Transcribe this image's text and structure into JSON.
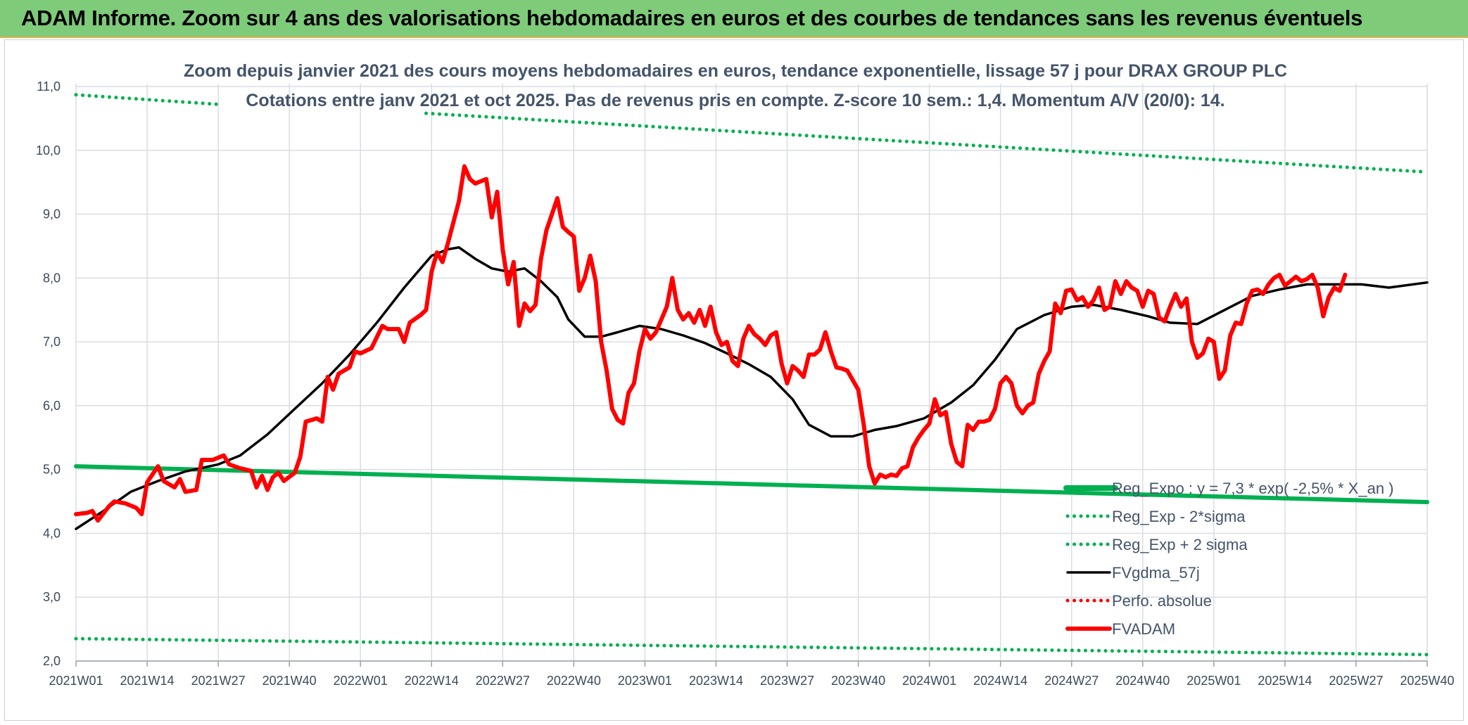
{
  "banner": {
    "title": "ADAM Informe. Zoom sur 4 ans des valorisations hebdomadaires en euros et des courbes de tendances sans les revenus éventuels"
  },
  "colors": {
    "banner_bg": "#7ecb7a",
    "trend": "#00b050",
    "price": "#ff0000",
    "smooth": "#000000",
    "grid": "#d9dde3",
    "text": "#44546a"
  },
  "chart_data": {
    "type": "line",
    "title_lines": [
      "Zoom depuis janvier 2021 des cours moyens hebdomadaires en euros, tendance exponentielle, lissage 57 j pour DRAX GROUP PLC",
      "Cotations entre janv 2021 et oct 2025. Pas de revenus pris en compte. Z-score 10 sem.: 1,4. Momentum A/V (20/0): 14."
    ],
    "x_ticks": [
      "2021W01",
      "2021W14",
      "2021W27",
      "2021W40",
      "2022W01",
      "2022W14",
      "2022W27",
      "2022W40",
      "2023W01",
      "2023W14",
      "2023W27",
      "2023W40",
      "2024W01",
      "2024W14",
      "2024W27",
      "2024W40",
      "2025W01",
      "2025W14",
      "2025W27",
      "2025W40"
    ],
    "y_ticks": [
      "2,0",
      "3,0",
      "4,0",
      "5,0",
      "6,0",
      "7,0",
      "8,0",
      "9,0",
      "10,0",
      "11,0"
    ],
    "ylim": [
      2.0,
      11.0
    ],
    "x_range_weeks": [
      0,
      247
    ],
    "grid": true,
    "legend_position": "bottom-right",
    "series": [
      {
        "name": "Reg_Expo : y = 7,3 * exp( -2,5% *  X_an )",
        "style": "solid-thick",
        "color": "#00b050",
        "points": [
          [
            0,
            5.05
          ],
          [
            247,
            4.49
          ]
        ]
      },
      {
        "name": "Reg_Exp - 2*sigma",
        "style": "dotted",
        "color": "#00b050",
        "points": [
          [
            0,
            2.35
          ],
          [
            247,
            2.1
          ]
        ]
      },
      {
        "name": "Reg_Exp + 2 sigma",
        "style": "dotted",
        "color": "#00b050",
        "points": [
          [
            0,
            10.87
          ],
          [
            26,
            10.72
          ]
        ],
        "points_b": [
          [
            64,
            10.58
          ],
          [
            247,
            9.66
          ]
        ]
      },
      {
        "name": "FVgdma_57j",
        "style": "solid",
        "color": "#000000",
        "points": [
          [
            0,
            4.07
          ],
          [
            5,
            4.35
          ],
          [
            10,
            4.65
          ],
          [
            15,
            4.82
          ],
          [
            20,
            4.97
          ],
          [
            26,
            5.08
          ],
          [
            30,
            5.22
          ],
          [
            35,
            5.55
          ],
          [
            40,
            5.95
          ],
          [
            45,
            6.35
          ],
          [
            50,
            6.8
          ],
          [
            55,
            7.3
          ],
          [
            60,
            7.85
          ],
          [
            65,
            8.35
          ],
          [
            68,
            8.45
          ],
          [
            70,
            8.48
          ],
          [
            73,
            8.3
          ],
          [
            76,
            8.15
          ],
          [
            79,
            8.1
          ],
          [
            82,
            8.15
          ],
          [
            85,
            7.95
          ],
          [
            88,
            7.7
          ],
          [
            90,
            7.35
          ],
          [
            93,
            7.08
          ],
          [
            96,
            7.08
          ],
          [
            99,
            7.15
          ],
          [
            103,
            7.25
          ],
          [
            107,
            7.2
          ],
          [
            111,
            7.1
          ],
          [
            115,
            6.98
          ],
          [
            119,
            6.82
          ],
          [
            123,
            6.65
          ],
          [
            127,
            6.45
          ],
          [
            131,
            6.1
          ],
          [
            134,
            5.7
          ],
          [
            138,
            5.52
          ],
          [
            142,
            5.52
          ],
          [
            146,
            5.62
          ],
          [
            150,
            5.68
          ],
          [
            155,
            5.8
          ],
          [
            160,
            6.05
          ],
          [
            164,
            6.32
          ],
          [
            168,
            6.72
          ],
          [
            172,
            7.2
          ],
          [
            177,
            7.42
          ],
          [
            182,
            7.55
          ],
          [
            186,
            7.58
          ],
          [
            191,
            7.5
          ],
          [
            196,
            7.4
          ],
          [
            200,
            7.3
          ],
          [
            205,
            7.28
          ],
          [
            210,
            7.5
          ],
          [
            215,
            7.72
          ],
          [
            220,
            7.82
          ],
          [
            225,
            7.9
          ],
          [
            230,
            7.9
          ],
          [
            235,
            7.9
          ],
          [
            240,
            7.85
          ],
          [
            247,
            7.93
          ]
        ]
      },
      {
        "name": "Perfo. absolue",
        "style": "dotted",
        "color": "#ff0000",
        "points": []
      },
      {
        "name": "FVADAM",
        "style": "solid-thick",
        "color": "#ff0000",
        "points": [
          [
            0,
            4.3
          ],
          [
            2,
            4.32
          ],
          [
            3,
            4.35
          ],
          [
            4,
            4.2
          ],
          [
            6,
            4.42
          ],
          [
            7,
            4.5
          ],
          [
            9,
            4.47
          ],
          [
            11,
            4.4
          ],
          [
            12,
            4.3
          ],
          [
            13,
            4.8
          ],
          [
            15,
            5.05
          ],
          [
            16,
            4.82
          ],
          [
            18,
            4.72
          ],
          [
            19,
            4.85
          ],
          [
            20,
            4.65
          ],
          [
            22,
            4.68
          ],
          [
            23,
            5.15
          ],
          [
            25,
            5.15
          ],
          [
            27,
            5.22
          ],
          [
            28,
            5.08
          ],
          [
            30,
            5.02
          ],
          [
            32,
            4.98
          ],
          [
            33,
            4.72
          ],
          [
            34,
            4.9
          ],
          [
            35,
            4.68
          ],
          [
            36,
            4.88
          ],
          [
            37,
            4.95
          ],
          [
            38,
            4.82
          ],
          [
            40,
            4.95
          ],
          [
            41,
            5.2
          ],
          [
            42,
            5.75
          ],
          [
            44,
            5.8
          ],
          [
            45,
            5.75
          ],
          [
            46,
            6.45
          ],
          [
            47,
            6.25
          ],
          [
            48,
            6.5
          ],
          [
            50,
            6.6
          ],
          [
            51,
            6.85
          ],
          [
            52,
            6.82
          ],
          [
            54,
            6.9
          ],
          [
            56,
            7.25
          ],
          [
            57,
            7.2
          ],
          [
            59,
            7.2
          ],
          [
            60,
            7.0
          ],
          [
            61,
            7.3
          ],
          [
            63,
            7.42
          ],
          [
            64,
            7.5
          ],
          [
            65,
            8.1
          ],
          [
            66,
            8.4
          ],
          [
            67,
            8.25
          ],
          [
            68,
            8.55
          ],
          [
            70,
            9.2
          ],
          [
            71,
            9.75
          ],
          [
            72,
            9.55
          ],
          [
            73,
            9.48
          ],
          [
            75,
            9.55
          ],
          [
            76,
            8.95
          ],
          [
            77,
            9.35
          ],
          [
            78,
            8.45
          ],
          [
            79,
            7.9
          ],
          [
            80,
            8.25
          ],
          [
            81,
            7.25
          ],
          [
            82,
            7.6
          ],
          [
            83,
            7.48
          ],
          [
            84,
            7.58
          ],
          [
            85,
            8.3
          ],
          [
            86,
            8.75
          ],
          [
            87,
            9.0
          ],
          [
            88,
            9.25
          ],
          [
            89,
            8.8
          ],
          [
            90,
            8.72
          ],
          [
            91,
            8.65
          ],
          [
            92,
            7.8
          ],
          [
            93,
            8.0
          ],
          [
            94,
            8.35
          ],
          [
            95,
            7.95
          ],
          [
            96,
            7.0
          ],
          [
            97,
            6.55
          ],
          [
            98,
            5.95
          ],
          [
            99,
            5.78
          ],
          [
            100,
            5.72
          ],
          [
            101,
            6.2
          ],
          [
            102,
            6.35
          ],
          [
            103,
            6.85
          ],
          [
            104,
            7.2
          ],
          [
            105,
            7.05
          ],
          [
            106,
            7.15
          ],
          [
            108,
            7.55
          ],
          [
            109,
            8.0
          ],
          [
            110,
            7.5
          ],
          [
            111,
            7.35
          ],
          [
            112,
            7.45
          ],
          [
            113,
            7.3
          ],
          [
            114,
            7.5
          ],
          [
            115,
            7.25
          ],
          [
            116,
            7.55
          ],
          [
            117,
            7.15
          ],
          [
            118,
            6.95
          ],
          [
            119,
            7.0
          ],
          [
            120,
            6.7
          ],
          [
            121,
            6.62
          ],
          [
            122,
            7.05
          ],
          [
            123,
            7.25
          ],
          [
            124,
            7.12
          ],
          [
            125,
            7.05
          ],
          [
            126,
            6.95
          ],
          [
            127,
            7.1
          ],
          [
            128,
            7.15
          ],
          [
            129,
            6.65
          ],
          [
            130,
            6.35
          ],
          [
            131,
            6.62
          ],
          [
            132,
            6.55
          ],
          [
            133,
            6.45
          ],
          [
            134,
            6.8
          ],
          [
            135,
            6.8
          ],
          [
            136,
            6.88
          ],
          [
            137,
            7.15
          ],
          [
            138,
            6.85
          ],
          [
            139,
            6.6
          ],
          [
            140,
            6.58
          ],
          [
            141,
            6.55
          ],
          [
            142,
            6.4
          ],
          [
            143,
            6.25
          ],
          [
            144,
            5.7
          ],
          [
            145,
            5.05
          ],
          [
            146,
            4.78
          ],
          [
            147,
            4.92
          ],
          [
            148,
            4.88
          ],
          [
            149,
            4.92
          ],
          [
            150,
            4.9
          ],
          [
            151,
            5.02
          ],
          [
            152,
            5.05
          ],
          [
            153,
            5.35
          ],
          [
            154,
            5.5
          ],
          [
            155,
            5.62
          ],
          [
            156,
            5.72
          ],
          [
            157,
            6.1
          ],
          [
            158,
            5.85
          ],
          [
            159,
            5.9
          ],
          [
            160,
            5.4
          ],
          [
            161,
            5.12
          ],
          [
            162,
            5.05
          ],
          [
            163,
            5.7
          ],
          [
            164,
            5.62
          ],
          [
            165,
            5.75
          ],
          [
            166,
            5.75
          ],
          [
            167,
            5.78
          ],
          [
            168,
            5.95
          ],
          [
            169,
            6.35
          ],
          [
            170,
            6.45
          ],
          [
            171,
            6.35
          ],
          [
            172,
            6.0
          ],
          [
            173,
            5.88
          ],
          [
            174,
            6.0
          ],
          [
            175,
            6.05
          ],
          [
            176,
            6.5
          ],
          [
            177,
            6.7
          ],
          [
            178,
            6.85
          ],
          [
            179,
            7.6
          ],
          [
            180,
            7.45
          ],
          [
            181,
            7.8
          ],
          [
            182,
            7.82
          ],
          [
            183,
            7.65
          ],
          [
            184,
            7.7
          ],
          [
            185,
            7.55
          ],
          [
            186,
            7.65
          ],
          [
            187,
            7.85
          ],
          [
            188,
            7.5
          ],
          [
            189,
            7.55
          ],
          [
            190,
            7.95
          ],
          [
            191,
            7.75
          ],
          [
            192,
            7.95
          ],
          [
            193,
            7.85
          ],
          [
            194,
            7.8
          ],
          [
            195,
            7.55
          ],
          [
            196,
            7.8
          ],
          [
            197,
            7.75
          ],
          [
            198,
            7.38
          ],
          [
            199,
            7.32
          ],
          [
            200,
            7.55
          ],
          [
            201,
            7.75
          ],
          [
            202,
            7.55
          ],
          [
            203,
            7.68
          ],
          [
            204,
            7.0
          ],
          [
            205,
            6.75
          ],
          [
            206,
            6.82
          ],
          [
            207,
            7.05
          ],
          [
            208,
            7.0
          ],
          [
            209,
            6.42
          ],
          [
            210,
            6.55
          ],
          [
            211,
            7.1
          ],
          [
            212,
            7.3
          ],
          [
            213,
            7.28
          ],
          [
            214,
            7.6
          ],
          [
            215,
            7.8
          ],
          [
            216,
            7.82
          ],
          [
            217,
            7.75
          ],
          [
            218,
            7.9
          ],
          [
            219,
            8.0
          ],
          [
            220,
            8.05
          ],
          [
            221,
            7.88
          ],
          [
            222,
            7.95
          ],
          [
            223,
            8.02
          ],
          [
            224,
            7.95
          ],
          [
            225,
            7.98
          ],
          [
            226,
            8.05
          ],
          [
            227,
            7.85
          ],
          [
            228,
            7.4
          ],
          [
            229,
            7.7
          ],
          [
            230,
            7.85
          ],
          [
            231,
            7.8
          ],
          [
            232,
            8.05
          ]
        ]
      }
    ]
  }
}
